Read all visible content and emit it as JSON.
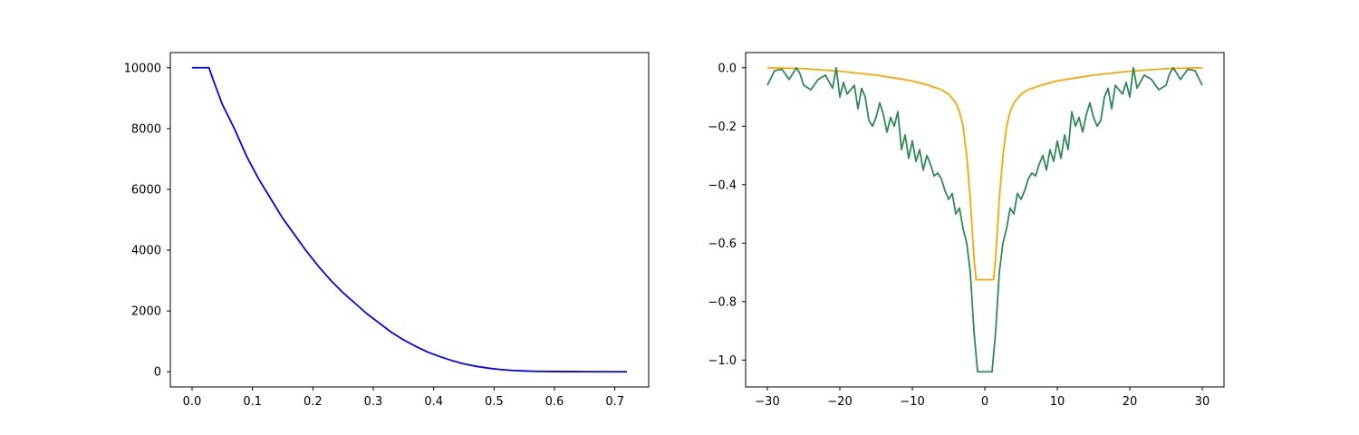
{
  "chart_data": [
    {
      "type": "line",
      "title": "",
      "xlabel": "",
      "ylabel": "",
      "xlim": [
        -0.036,
        0.756
      ],
      "ylim": [
        -500,
        10500
      ],
      "xticks": [
        0.0,
        0.1,
        0.2,
        0.3,
        0.4,
        0.5,
        0.6,
        0.7
      ],
      "xtick_labels": [
        "0.0",
        "0.1",
        "0.2",
        "0.3",
        "0.4",
        "0.5",
        "0.6",
        "0.7"
      ],
      "yticks": [
        0,
        2000,
        4000,
        6000,
        8000,
        10000
      ],
      "ytick_labels": [
        "0",
        "2000",
        "4000",
        "6000",
        "8000",
        "10000"
      ],
      "grid": false,
      "series": [
        {
          "color": "#0000ff",
          "x": [
            0.0,
            0.028,
            0.035,
            0.05,
            0.07,
            0.09,
            0.11,
            0.13,
            0.15,
            0.17,
            0.19,
            0.21,
            0.23,
            0.25,
            0.27,
            0.29,
            0.31,
            0.33,
            0.35,
            0.37,
            0.39,
            0.41,
            0.43,
            0.45,
            0.47,
            0.49,
            0.51,
            0.53,
            0.55,
            0.57,
            0.6,
            0.65,
            0.72
          ],
          "y": [
            10000,
            10000,
            9600,
            8800,
            8000,
            7100,
            6350,
            5700,
            5050,
            4500,
            3950,
            3450,
            3000,
            2600,
            2250,
            1900,
            1600,
            1300,
            1050,
            840,
            650,
            500,
            370,
            260,
            180,
            120,
            75,
            45,
            28,
            15,
            8,
            3,
            0
          ]
        }
      ]
    },
    {
      "type": "line",
      "title": "",
      "xlabel": "",
      "ylabel": "",
      "xlim": [
        -33,
        33
      ],
      "ylim": [
        -1.092,
        0.052
      ],
      "xticks": [
        -30,
        -20,
        -10,
        0,
        10,
        20,
        30
      ],
      "xtick_labels": [
        "−30",
        "−20",
        "−10",
        "0",
        "10",
        "20",
        "30"
      ],
      "yticks": [
        0.0,
        -0.2,
        -0.4,
        -0.6,
        -0.8,
        -1.0
      ],
      "ytick_labels": [
        "0.0",
        "−0.2",
        "−0.4",
        "−0.6",
        "−0.8",
        "−1.0"
      ],
      "grid": false,
      "series": [
        {
          "color": "#ffa500",
          "x": [
            -30,
            -25,
            -20,
            -15,
            -10,
            -8,
            -6,
            -5,
            -4,
            -3.5,
            -3,
            -2.5,
            -2,
            -1.5,
            -1.2,
            1.2,
            1.5,
            2,
            2.5,
            3,
            3.5,
            4,
            5,
            6,
            8,
            10,
            15,
            20,
            25,
            30
          ],
          "y": [
            0.0,
            -0.003,
            -0.012,
            -0.025,
            -0.045,
            -0.058,
            -0.075,
            -0.09,
            -0.12,
            -0.15,
            -0.2,
            -0.3,
            -0.45,
            -0.65,
            -0.725,
            -0.725,
            -0.65,
            -0.45,
            -0.3,
            -0.2,
            -0.15,
            -0.12,
            -0.09,
            -0.075,
            -0.058,
            -0.045,
            -0.025,
            -0.012,
            -0.003,
            0.0
          ]
        },
        {
          "color": "#2e8b57",
          "x": [
            -30,
            -29,
            -28,
            -27,
            -26,
            -25.5,
            -25,
            -24,
            -23,
            -22,
            -21,
            -20.5,
            -20,
            -19.5,
            -19,
            -18,
            -17.5,
            -17,
            -16.5,
            -16,
            -15.5,
            -15,
            -14.5,
            -14,
            -13.5,
            -13,
            -12.5,
            -12,
            -11.5,
            -11,
            -10.5,
            -10,
            -9.5,
            -9,
            -8.5,
            -8,
            -7.5,
            -7,
            -6.5,
            -6,
            -5.5,
            -5,
            -4.5,
            -4,
            -3.5,
            -3,
            -2.5,
            -2,
            -1.5,
            -1,
            1,
            1.5,
            2,
            2.5,
            3,
            3.5,
            4,
            4.5,
            5,
            5.5,
            6,
            6.5,
            7,
            7.5,
            8,
            8.5,
            9,
            9.5,
            10,
            10.5,
            11,
            11.5,
            12,
            12.5,
            13,
            13.5,
            14,
            14.5,
            15,
            15.5,
            16,
            16.5,
            17,
            17.5,
            18,
            19,
            19.5,
            20,
            20.5,
            21,
            22,
            23,
            24,
            25,
            25.5,
            26,
            27,
            28,
            29,
            30
          ],
          "y": [
            -0.06,
            -0.01,
            -0.005,
            -0.04,
            0.0,
            -0.02,
            -0.06,
            -0.075,
            -0.04,
            -0.025,
            -0.07,
            0.0,
            -0.1,
            -0.05,
            -0.09,
            -0.06,
            -0.14,
            -0.07,
            -0.1,
            -0.18,
            -0.2,
            -0.17,
            -0.12,
            -0.16,
            -0.22,
            -0.17,
            -0.2,
            -0.15,
            -0.28,
            -0.23,
            -0.31,
            -0.25,
            -0.32,
            -0.28,
            -0.35,
            -0.3,
            -0.33,
            -0.37,
            -0.36,
            -0.38,
            -0.42,
            -0.45,
            -0.43,
            -0.5,
            -0.48,
            -0.55,
            -0.6,
            -0.7,
            -0.9,
            -1.04,
            -1.04,
            -0.9,
            -0.7,
            -0.6,
            -0.55,
            -0.48,
            -0.5,
            -0.43,
            -0.45,
            -0.42,
            -0.38,
            -0.36,
            -0.37,
            -0.33,
            -0.3,
            -0.35,
            -0.28,
            -0.32,
            -0.25,
            -0.31,
            -0.23,
            -0.28,
            -0.15,
            -0.2,
            -0.17,
            -0.22,
            -0.16,
            -0.12,
            -0.17,
            -0.2,
            -0.18,
            -0.1,
            -0.07,
            -0.14,
            -0.06,
            -0.09,
            -0.05,
            -0.1,
            0.0,
            -0.07,
            -0.025,
            -0.04,
            -0.075,
            -0.06,
            -0.02,
            0.0,
            -0.04,
            -0.005,
            -0.01,
            -0.06
          ]
        }
      ]
    }
  ]
}
